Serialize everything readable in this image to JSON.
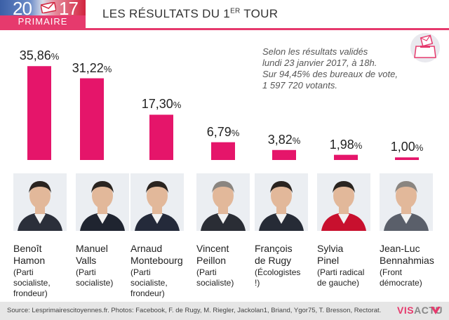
{
  "header": {
    "logo_year_left": "20",
    "logo_year_right": "17",
    "logo_label": "PRIMAIRE",
    "title_main": "LES RÉSULTATS DU 1",
    "title_sup": "ER",
    "title_tail": " TOUR"
  },
  "note": {
    "line1": "Selon les résultats validés",
    "line2": "lundi 23 janvier 2017, à 18h.",
    "line3": "Sur 94,45% des bureaux de vote,",
    "line4": "1 597 720 votants."
  },
  "colors": {
    "accent": "#e63a6d",
    "bar": "#e5156a",
    "text": "#222222"
  },
  "chart_data": {
    "type": "bar",
    "categories": [
      "Benoît Hamon",
      "Manuel Valls",
      "Arnaud Montebourg",
      "Vincent Peillon",
      "François de Rugy",
      "Sylvia Pinel",
      "Jean-Luc Bennahmias"
    ],
    "values": [
      35.86,
      31.22,
      17.3,
      6.79,
      3.82,
      1.98,
      1.0
    ],
    "value_labels": [
      "35,86",
      "31,22",
      "17,30",
      "6,79",
      "3,82",
      "1,98",
      "1,00"
    ],
    "unit": "%",
    "ylim": [
      0,
      40
    ],
    "grid": false,
    "legend": "none"
  },
  "candidates": [
    {
      "first": "Benoît",
      "last": "Hamon",
      "party_lines": [
        "(Parti",
        "socialiste,",
        "frondeur)"
      ],
      "icon": "portrait-hamon"
    },
    {
      "first": "Manuel",
      "last": "Valls",
      "party_lines": [
        "(Parti",
        "socialiste)"
      ],
      "icon": "portrait-valls"
    },
    {
      "first": "Arnaud",
      "last": "Montebourg",
      "party_lines": [
        "(Parti",
        "socialiste,",
        "frondeur)"
      ],
      "icon": "portrait-montebourg"
    },
    {
      "first": "Vincent",
      "last": "Peillon",
      "party_lines": [
        "(Parti",
        "socialiste)"
      ],
      "icon": "portrait-peillon"
    },
    {
      "first": "François",
      "last": "de Rugy",
      "party_lines": [
        "(Écologistes !)"
      ],
      "icon": "portrait-de-rugy"
    },
    {
      "first": "Sylvia",
      "last": "Pinel",
      "party_lines": [
        "(Parti radical",
        "de gauche)"
      ],
      "icon": "portrait-pinel"
    },
    {
      "first": "Jean-Luc",
      "last": "Bennahmias",
      "party_lines": [
        "(Front",
        "démocrate)"
      ],
      "icon": "portrait-bennahmias"
    }
  ],
  "footer": {
    "source": "Source: Lesprimairescitoyennes.fr. Photos: Facebook, F. de Rugy, M. Riegler, Jackolan1, Briand, Ygor75, T. Bresson, Rectorat.",
    "brand_a": "VIS",
    "brand_b": "ACTU"
  },
  "icons": {
    "logo": "envelope-icon",
    "note": "ballot-box-icon",
    "brand": "visactu-logo-icon"
  }
}
